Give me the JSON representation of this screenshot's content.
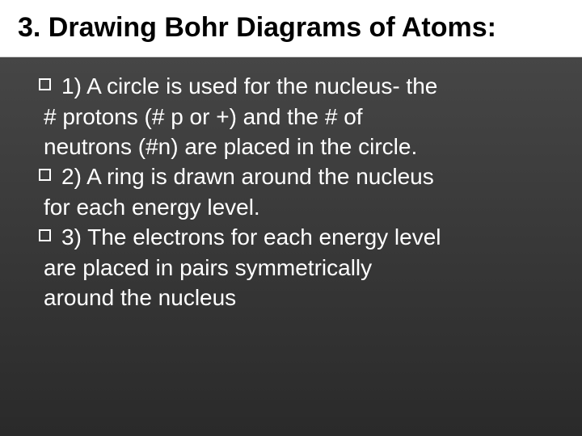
{
  "slide": {
    "title": "3. Drawing Bohr Diagrams of Atoms:",
    "title_fontsize": 34,
    "title_color": "#000000",
    "title_background": "#ffffff",
    "body_background_gradient": [
      "#4a4a4a",
      "#3a3a3a",
      "#2a2a2a"
    ],
    "body_text_color": "#ffffff",
    "body_fontsize": 28,
    "bullet_style": "hollow-square",
    "bullet_border_color": "#ffffff",
    "items": [
      {
        "label": "1)",
        "line1": "A circle is used for the nucleus- the",
        "cont": [
          "# protons   (# p or +) and the # of",
          "neutrons (#n) are placed in the circle."
        ]
      },
      {
        "label": "2)",
        "line1": "A ring is drawn around the nucleus",
        "cont": [
          "for each energy level."
        ]
      },
      {
        "label": "3)",
        "line1": "The electrons for each energy level",
        "cont": [
          "are placed in pairs symmetrically",
          "around the nucleus"
        ]
      }
    ]
  }
}
